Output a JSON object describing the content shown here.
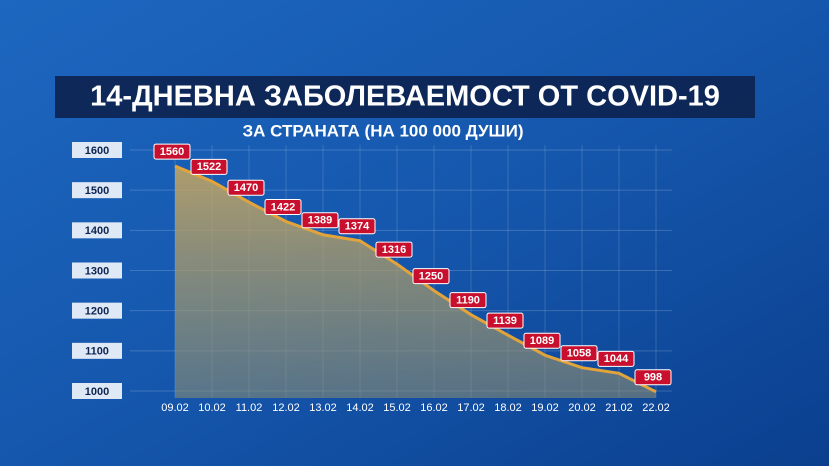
{
  "chart_data": {
    "type": "area",
    "title": "14-ДНЕВНА ЗАБОЛЕВАЕМОСТ ОТ COVID-19",
    "subtitle": "ЗА СТРАНАТА (НА 100 000 ДУШИ)",
    "categories": [
      "09.02",
      "10.02",
      "11.02",
      "12.02",
      "13.02",
      "14.02",
      "15.02",
      "16.02",
      "17.02",
      "18.02",
      "19.02",
      "20.02",
      "21.02",
      "22.02"
    ],
    "values": [
      1560,
      1522,
      1470,
      1422,
      1389,
      1374,
      1316,
      1250,
      1190,
      1139,
      1089,
      1058,
      1044,
      998
    ],
    "color": "#e2a43a",
    "ylim": [
      1000,
      1600
    ],
    "yticks": [
      1000,
      1100,
      1200,
      1300,
      1400,
      1500,
      1600
    ],
    "grid": true
  }
}
